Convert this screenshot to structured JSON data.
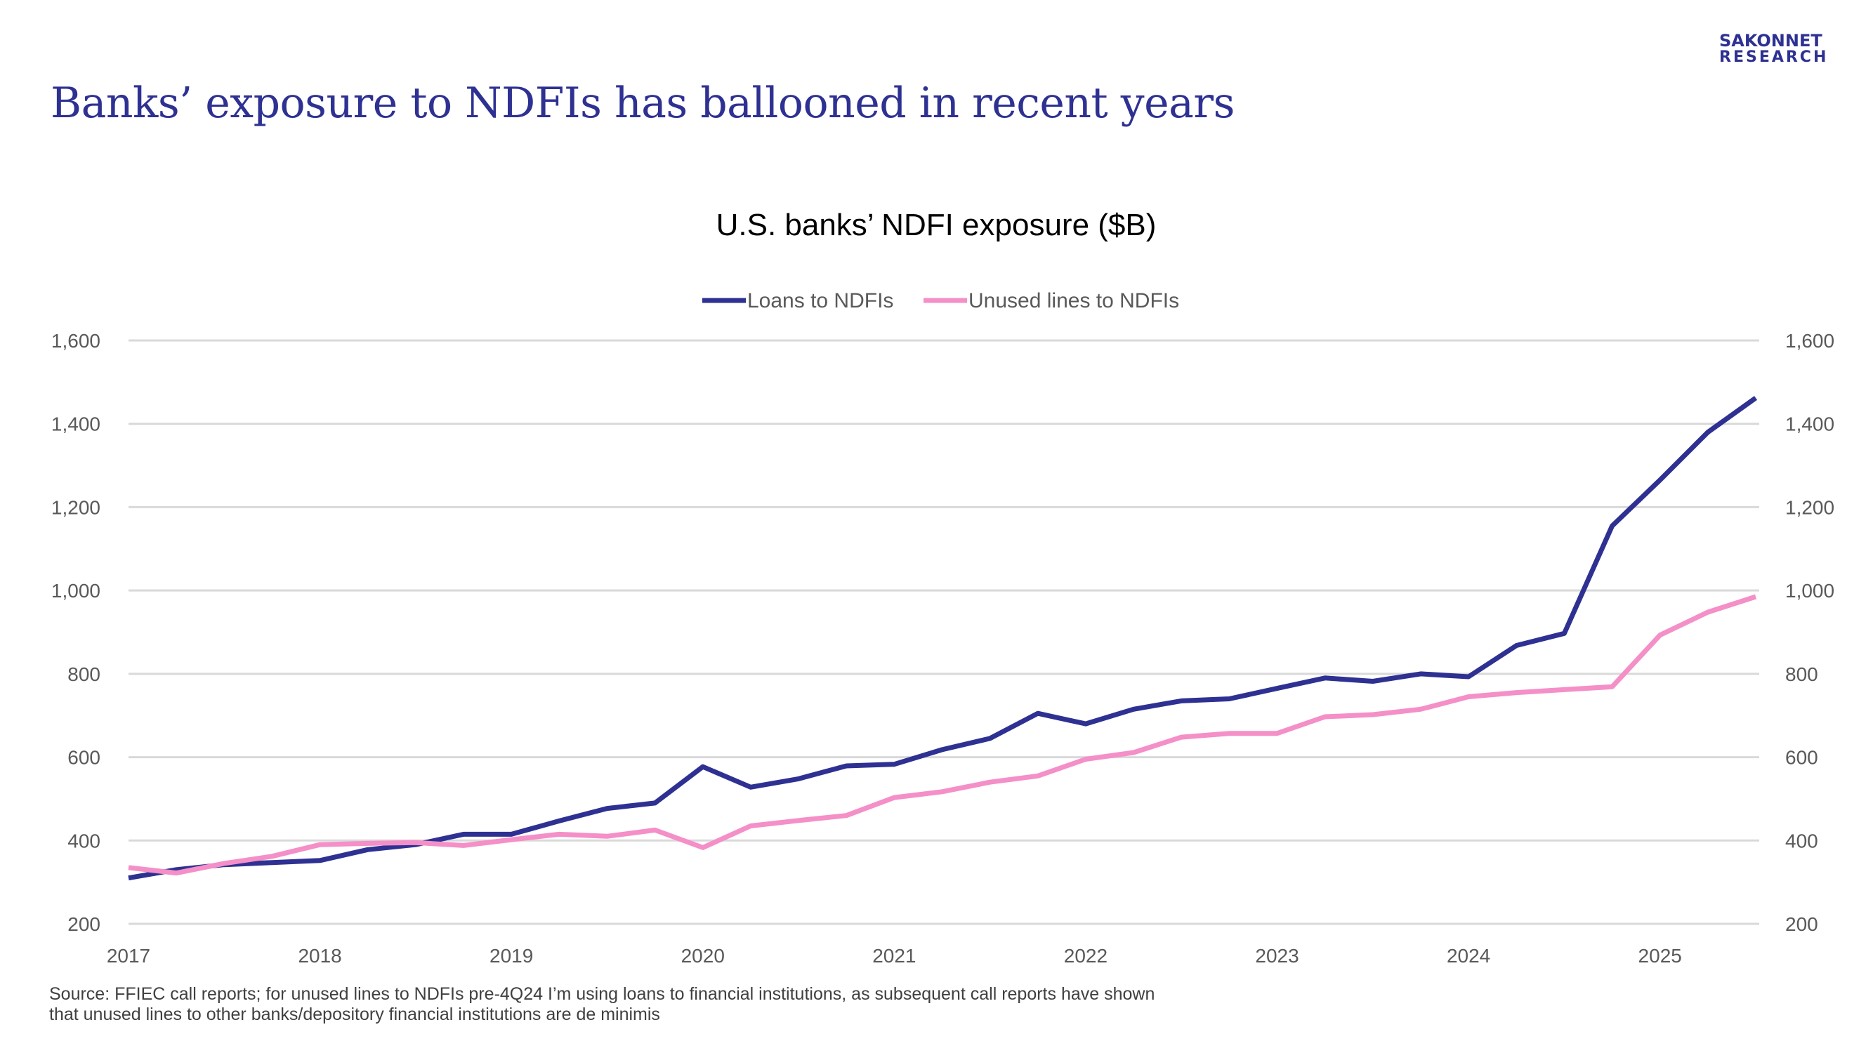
{
  "header": {
    "title": "Banks’ exposure to NDFIs has ballooned in recent years",
    "logo_line1": "SAKONNET",
    "logo_line2": "RESEARCH"
  },
  "footer": {
    "line1": "Source: FFIEC call reports; for unused lines to NDFIs pre-4Q24 I’m using loans to financial institutions, as subsequent call reports have shown",
    "line2": "that unused lines to other banks/depository financial institutions are de minimis"
  },
  "chart_data": {
    "type": "line",
    "title": "U.S. banks’ NDFI exposure ($B)",
    "xlabel": "",
    "ylabel": "",
    "ylim": [
      200,
      1600
    ],
    "yticks": [
      200,
      400,
      600,
      800,
      1000,
      1200,
      1400,
      1600
    ],
    "ytick_labels": [
      "200",
      "400",
      "600",
      "800",
      "1,000",
      "1,200",
      "1,400",
      "1,600"
    ],
    "xlim": [
      2017,
      2025.5
    ],
    "xticks": [
      2017,
      2018,
      2019,
      2020,
      2021,
      2022,
      2023,
      2024,
      2025
    ],
    "xtick_labels": [
      "2017",
      "2018",
      "2019",
      "2020",
      "2021",
      "2022",
      "2023",
      "2024",
      "2025"
    ],
    "grid": true,
    "legend_position": "top-center",
    "x_start": 2017,
    "x_step": 0.25,
    "series": [
      {
        "name": "Loans to NDFIs",
        "color": "#2e3192",
        "values": [
          310,
          330,
          342,
          347,
          352,
          378,
          390,
          415,
          415,
          447,
          477,
          490,
          577,
          528,
          548,
          579,
          583,
          618,
          645,
          705,
          680,
          715,
          735,
          740,
          765,
          790,
          782,
          800,
          793,
          868,
          897,
          1155,
          1265,
          1380,
          1462
        ]
      },
      {
        "name": "Unused lines to NDFIs",
        "color": "#f48fc8",
        "values": [
          335,
          322,
          345,
          362,
          390,
          393,
          395,
          388,
          402,
          415,
          410,
          425,
          383,
          435,
          448,
          460,
          503,
          517,
          540,
          555,
          595,
          611,
          648,
          657,
          657,
          697,
          702,
          715,
          745,
          755,
          762,
          769,
          893,
          948,
          985
        ]
      }
    ]
  }
}
